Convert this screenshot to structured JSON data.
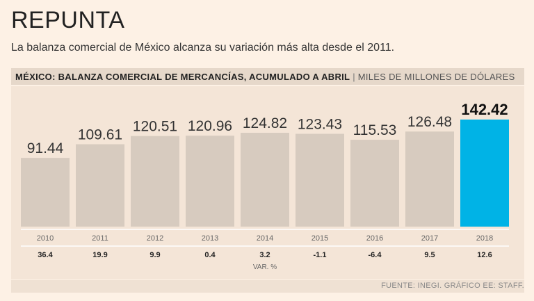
{
  "title": "REPUNTA",
  "subtitle": "La balanza comercial de México alcanza su variación más alta desde el 2011.",
  "header": {
    "main": "MÉXICO: BALANZA COMERCIAL DE MERCANCÍAS, ACUMULADO A ABRIL",
    "separator": "|",
    "unit": "MILES DE MILLONES DE DÓLARES"
  },
  "source": "FUENTE: INEGI. GRÁFICO EE: STAFF.",
  "colors": {
    "bar": "#d7cbbf",
    "highlight": "#00b3e6",
    "panel": "#f4e5d7",
    "background": "#fdf1e5"
  },
  "chart_data": {
    "type": "bar",
    "title": "MÉXICO: BALANZA COMERCIAL DE MERCANCÍAS, ACUMULADO A ABRIL",
    "ylabel": "MILES DE MILLONES DE DÓLARES",
    "xlabel": "",
    "categories": [
      "2010",
      "2011",
      "2012",
      "2013",
      "2014",
      "2015",
      "2016",
      "2017",
      "2018"
    ],
    "values": [
      91.44,
      109.61,
      120.51,
      120.96,
      124.82,
      123.43,
      115.53,
      126.48,
      142.42
    ],
    "value_labels": [
      "91.44",
      "109.61",
      "120.51",
      "120.96",
      "124.82",
      "123.43",
      "115.53",
      "126.48",
      "142.42"
    ],
    "variation_label": "VAR. %",
    "variation": [
      "36.4",
      "19.9",
      "9.9",
      "0.4",
      "3.2",
      "-1.1",
      "-6.4",
      "9.5",
      "12.6"
    ],
    "highlight_index": 8,
    "ylim": [
      0,
      142.42
    ]
  }
}
